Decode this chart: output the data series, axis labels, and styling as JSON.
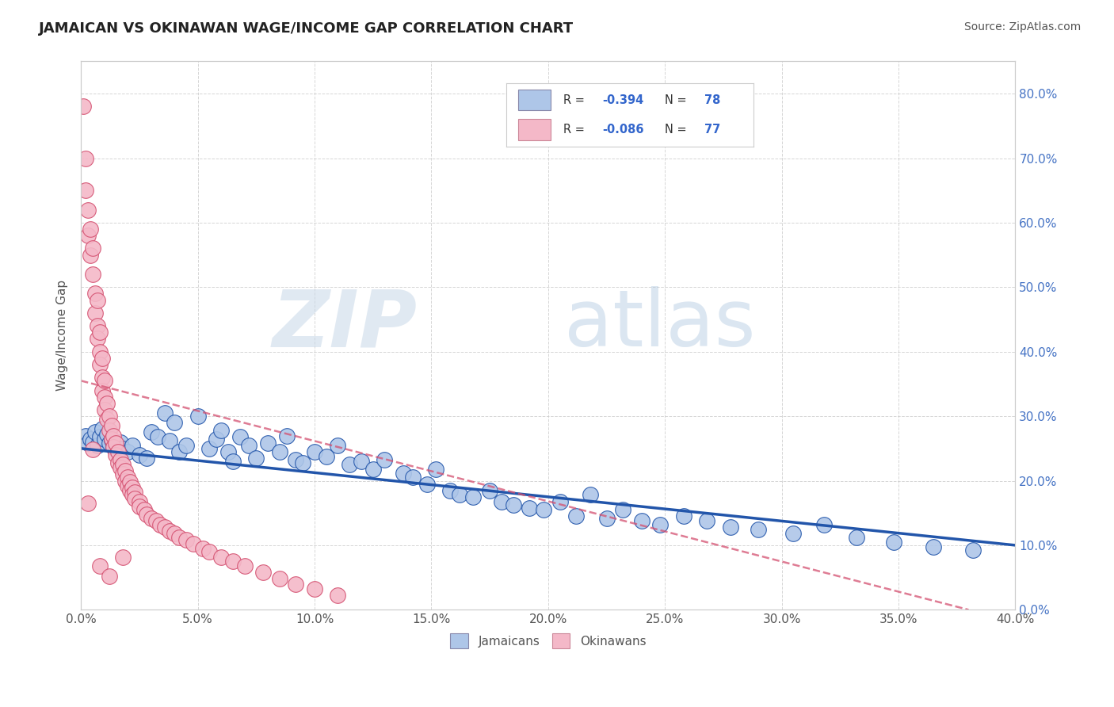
{
  "title": "JAMAICAN VS OKINAWAN WAGE/INCOME GAP CORRELATION CHART",
  "source_text": "Source: ZipAtlas.com",
  "ylabel": "Wage/Income Gap",
  "xlim": [
    0.0,
    0.4
  ],
  "ylim": [
    0.0,
    0.85
  ],
  "xticks": [
    0.0,
    0.05,
    0.1,
    0.15,
    0.2,
    0.25,
    0.3,
    0.35,
    0.4
  ],
  "yticks": [
    0.0,
    0.1,
    0.2,
    0.3,
    0.4,
    0.5,
    0.6,
    0.7,
    0.8
  ],
  "jamaicans_R": -0.394,
  "jamaicans_N": 78,
  "okinawans_R": -0.086,
  "okinawans_N": 77,
  "blue_color": "#aec6e8",
  "blue_line_color": "#2255aa",
  "pink_color": "#f4b8c8",
  "pink_line_color": "#d45070",
  "watermark_zip": "ZIP",
  "watermark_atlas": "atlas",
  "background_color": "#ffffff",
  "jamaicans_x": [
    0.002,
    0.003,
    0.004,
    0.005,
    0.006,
    0.007,
    0.008,
    0.009,
    0.01,
    0.011,
    0.012,
    0.013,
    0.014,
    0.015,
    0.016,
    0.017,
    0.018,
    0.02,
    0.022,
    0.025,
    0.028,
    0.03,
    0.033,
    0.036,
    0.038,
    0.04,
    0.042,
    0.045,
    0.05,
    0.055,
    0.058,
    0.06,
    0.063,
    0.065,
    0.068,
    0.072,
    0.075,
    0.08,
    0.085,
    0.088,
    0.092,
    0.095,
    0.1,
    0.105,
    0.11,
    0.115,
    0.12,
    0.125,
    0.13,
    0.138,
    0.142,
    0.148,
    0.152,
    0.158,
    0.162,
    0.168,
    0.175,
    0.18,
    0.185,
    0.192,
    0.198,
    0.205,
    0.212,
    0.218,
    0.225,
    0.232,
    0.24,
    0.248,
    0.258,
    0.268,
    0.278,
    0.29,
    0.305,
    0.318,
    0.332,
    0.348,
    0.365,
    0.382
  ],
  "jamaicans_y": [
    0.27,
    0.258,
    0.265,
    0.26,
    0.275,
    0.255,
    0.268,
    0.28,
    0.265,
    0.272,
    0.258,
    0.263,
    0.252,
    0.248,
    0.255,
    0.26,
    0.25,
    0.245,
    0.255,
    0.24,
    0.235,
    0.275,
    0.268,
    0.305,
    0.262,
    0.29,
    0.245,
    0.255,
    0.3,
    0.25,
    0.265,
    0.278,
    0.245,
    0.23,
    0.268,
    0.255,
    0.235,
    0.258,
    0.245,
    0.27,
    0.232,
    0.228,
    0.245,
    0.238,
    0.255,
    0.225,
    0.23,
    0.218,
    0.232,
    0.212,
    0.205,
    0.195,
    0.218,
    0.185,
    0.178,
    0.175,
    0.185,
    0.168,
    0.162,
    0.158,
    0.155,
    0.168,
    0.145,
    0.178,
    0.142,
    0.155,
    0.138,
    0.132,
    0.145,
    0.138,
    0.128,
    0.125,
    0.118,
    0.132,
    0.112,
    0.105,
    0.098,
    0.092
  ],
  "okinawans_x": [
    0.001,
    0.002,
    0.002,
    0.003,
    0.003,
    0.004,
    0.004,
    0.005,
    0.005,
    0.006,
    0.006,
    0.007,
    0.007,
    0.007,
    0.008,
    0.008,
    0.008,
    0.009,
    0.009,
    0.009,
    0.01,
    0.01,
    0.01,
    0.011,
    0.011,
    0.012,
    0.012,
    0.013,
    0.013,
    0.014,
    0.014,
    0.015,
    0.015,
    0.016,
    0.016,
    0.017,
    0.017,
    0.018,
    0.018,
    0.019,
    0.019,
    0.02,
    0.02,
    0.021,
    0.021,
    0.022,
    0.022,
    0.023,
    0.023,
    0.025,
    0.025,
    0.027,
    0.028,
    0.03,
    0.032,
    0.034,
    0.036,
    0.038,
    0.04,
    0.042,
    0.045,
    0.048,
    0.052,
    0.055,
    0.06,
    0.065,
    0.07,
    0.078,
    0.085,
    0.092,
    0.1,
    0.11,
    0.005,
    0.003,
    0.008,
    0.012,
    0.018
  ],
  "okinawans_y": [
    0.78,
    0.7,
    0.65,
    0.62,
    0.58,
    0.59,
    0.55,
    0.56,
    0.52,
    0.49,
    0.46,
    0.44,
    0.48,
    0.42,
    0.4,
    0.43,
    0.38,
    0.36,
    0.39,
    0.34,
    0.33,
    0.355,
    0.31,
    0.32,
    0.295,
    0.3,
    0.278,
    0.285,
    0.265,
    0.27,
    0.252,
    0.258,
    0.24,
    0.245,
    0.228,
    0.232,
    0.22,
    0.225,
    0.21,
    0.215,
    0.2,
    0.205,
    0.192,
    0.198,
    0.185,
    0.19,
    0.178,
    0.182,
    0.172,
    0.168,
    0.16,
    0.155,
    0.148,
    0.142,
    0.138,
    0.132,
    0.128,
    0.122,
    0.118,
    0.112,
    0.108,
    0.102,
    0.095,
    0.09,
    0.082,
    0.075,
    0.068,
    0.058,
    0.048,
    0.04,
    0.032,
    0.022,
    0.248,
    0.165,
    0.068,
    0.052,
    0.082
  ]
}
